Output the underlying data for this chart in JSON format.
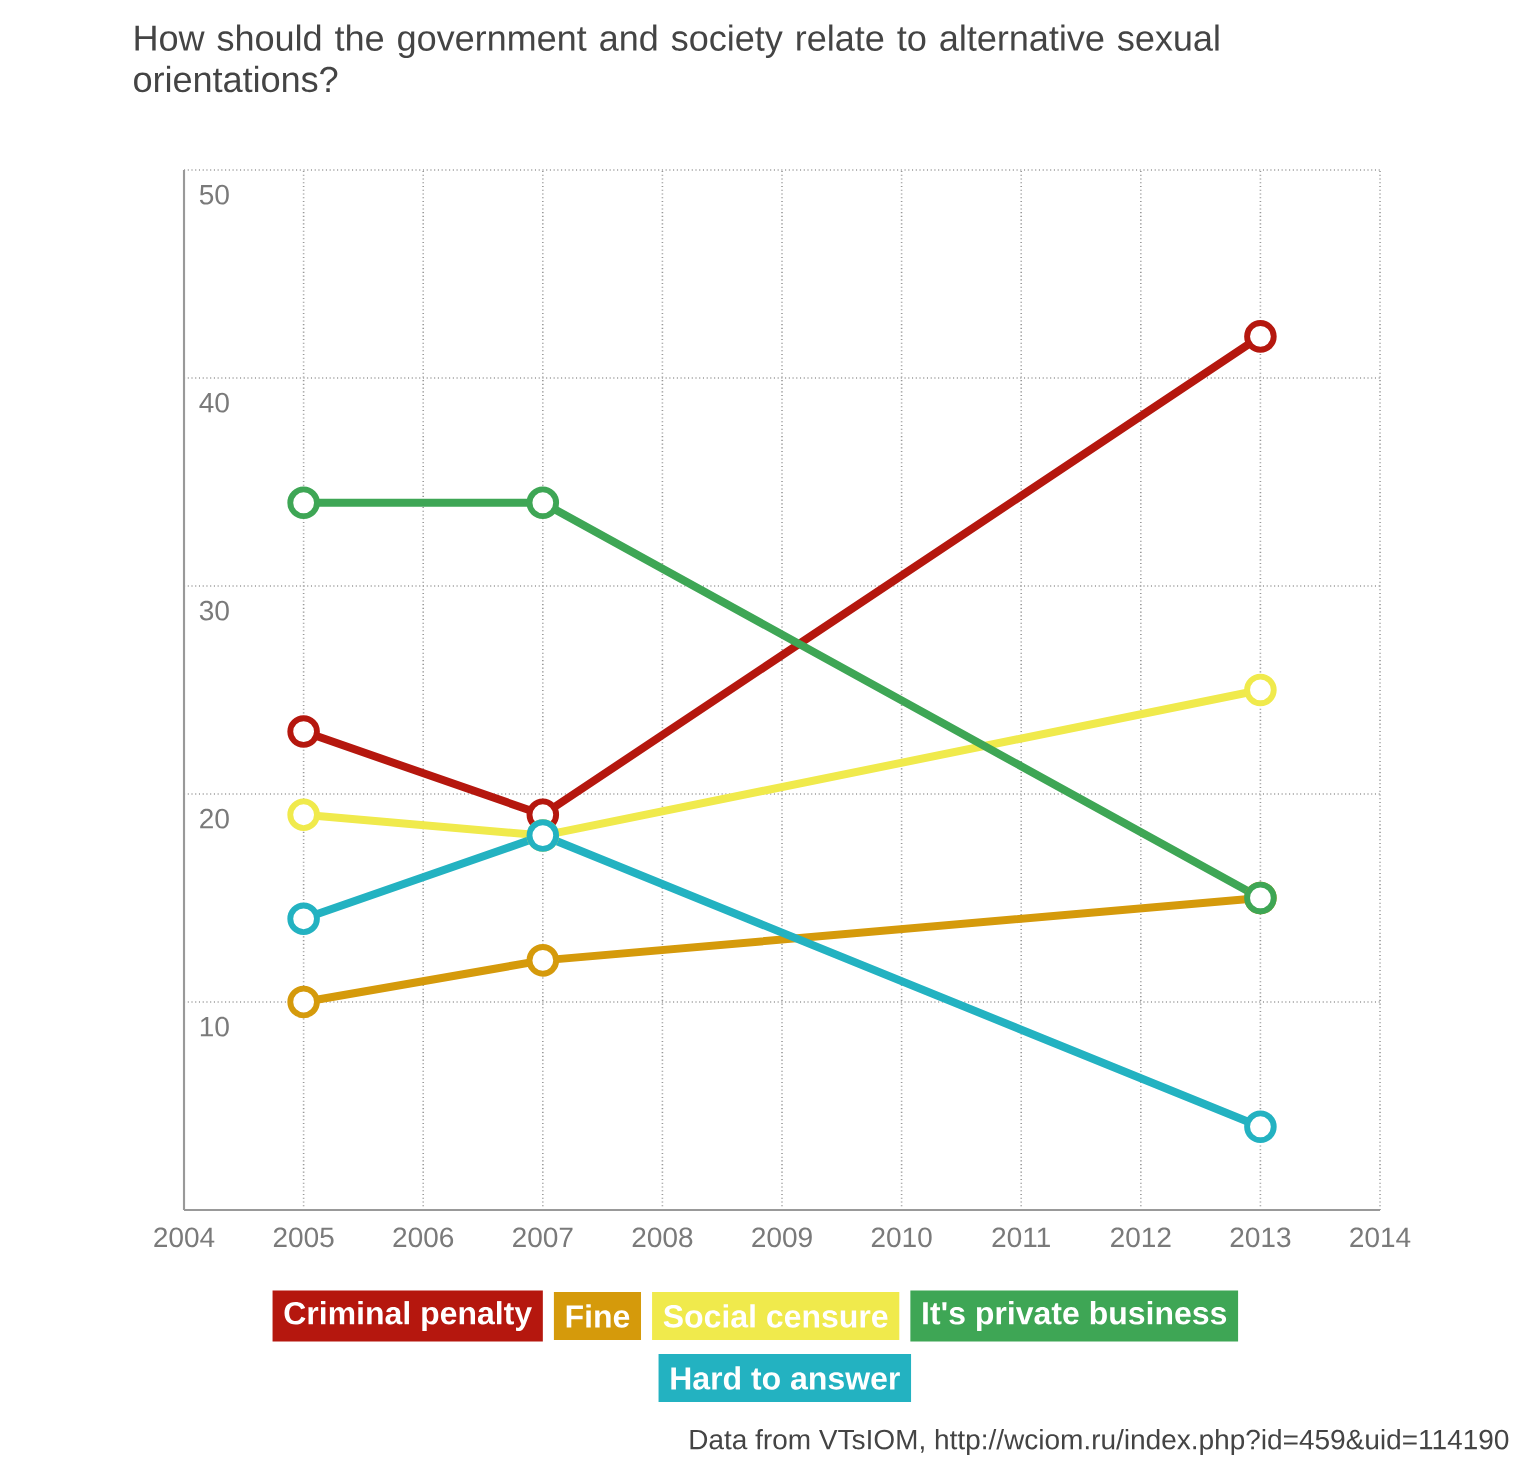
{
  "chart_data": {
    "type": "line",
    "title": "How should the government and society relate to alternative sexual orientations?",
    "x": [
      2005,
      2007,
      2013
    ],
    "series": [
      {
        "name": "Criminal penalty",
        "color": "#b5170e",
        "values": [
          23,
          19,
          42
        ]
      },
      {
        "name": "Fine",
        "color": "#d59a0b",
        "values": [
          10,
          12,
          15
        ]
      },
      {
        "name": "Social censure",
        "color": "#f0ea4c",
        "values": [
          19,
          18,
          25
        ]
      },
      {
        "name": "It's private business",
        "color": "#3ea655",
        "values": [
          34,
          34,
          15
        ]
      },
      {
        "name": "Hard to answer",
        "color": "#23b2c1",
        "values": [
          14,
          18,
          4
        ]
      }
    ],
    "xlim": [
      2004,
      2014
    ],
    "xticks": [
      2004,
      2005,
      2006,
      2007,
      2008,
      2009,
      2010,
      2011,
      2012,
      2013,
      2014
    ],
    "ylim": [
      0,
      50
    ],
    "yticks": [
      10,
      20,
      30,
      40,
      50
    ],
    "grid": true,
    "legend": "bottom",
    "marker": "circle",
    "line_style": "solid",
    "annotations": [
      "Data from VTsIOM, http://wciom.ru/index.php?id=459&uid=114190"
    ]
  }
}
